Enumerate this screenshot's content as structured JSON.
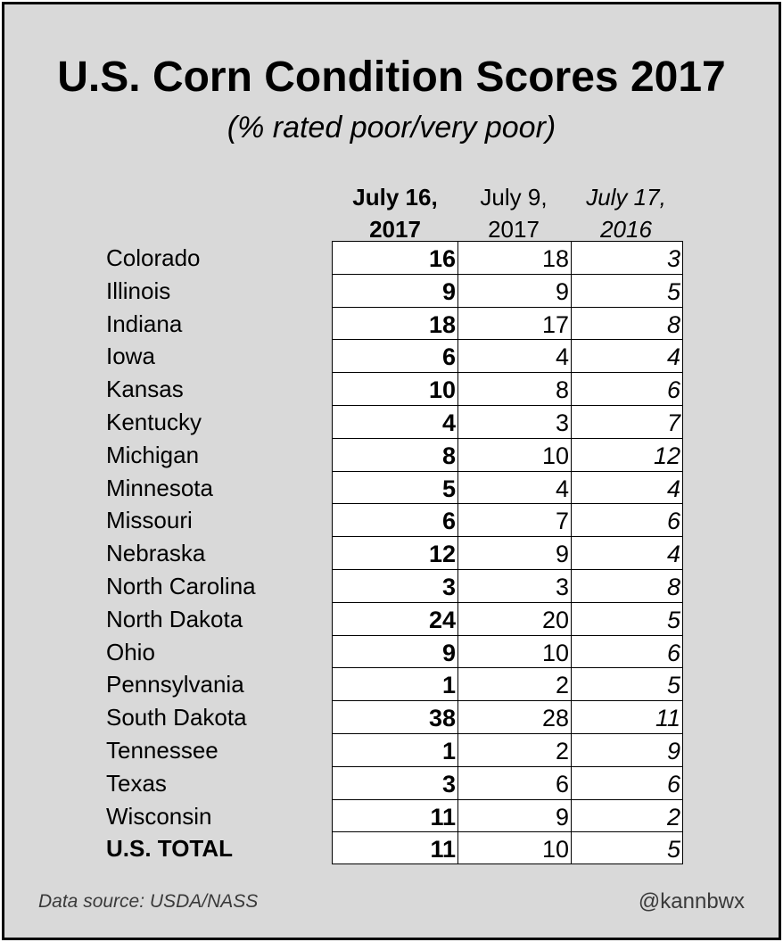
{
  "chart_data": {
    "type": "table",
    "title": "U.S. Corn Condition Scores 2017",
    "subtitle": "(% rated poor/very poor)",
    "columns": [
      {
        "line1": "July 16,",
        "line2": "2017"
      },
      {
        "line1": "July 9,",
        "line2": "2017"
      },
      {
        "line1": "July 17,",
        "line2": "2016"
      }
    ],
    "rows": [
      {
        "state": "Colorado",
        "values": [
          16,
          18,
          3
        ]
      },
      {
        "state": "Illinois",
        "values": [
          9,
          9,
          5
        ]
      },
      {
        "state": "Indiana",
        "values": [
          18,
          17,
          8
        ]
      },
      {
        "state": "Iowa",
        "values": [
          6,
          4,
          4
        ]
      },
      {
        "state": "Kansas",
        "values": [
          10,
          8,
          6
        ]
      },
      {
        "state": "Kentucky",
        "values": [
          4,
          3,
          7
        ]
      },
      {
        "state": "Michigan",
        "values": [
          8,
          10,
          12
        ]
      },
      {
        "state": "Minnesota",
        "values": [
          5,
          4,
          4
        ]
      },
      {
        "state": "Missouri",
        "values": [
          6,
          7,
          6
        ]
      },
      {
        "state": "Nebraska",
        "values": [
          12,
          9,
          4
        ]
      },
      {
        "state": "North Carolina",
        "values": [
          3,
          3,
          8
        ]
      },
      {
        "state": "North Dakota",
        "values": [
          24,
          20,
          5
        ]
      },
      {
        "state": "Ohio",
        "values": [
          9,
          10,
          6
        ]
      },
      {
        "state": "Pennsylvania",
        "values": [
          1,
          2,
          5
        ]
      },
      {
        "state": "South Dakota",
        "values": [
          38,
          28,
          11
        ]
      },
      {
        "state": "Tennessee",
        "values": [
          1,
          2,
          9
        ]
      },
      {
        "state": "Texas",
        "values": [
          3,
          6,
          6
        ]
      },
      {
        "state": "Wisconsin",
        "values": [
          11,
          9,
          2
        ]
      },
      {
        "state": "U.S. TOTAL",
        "values": [
          11,
          10,
          5
        ],
        "total": true
      }
    ]
  },
  "footer": {
    "source": "Data source: USDA/NASS",
    "handle": "@kannbwx"
  },
  "colors": {
    "background": "#d9d9d9",
    "cell": "#ffffff",
    "border": "#000000",
    "footer_text": "#3a3a3a"
  }
}
